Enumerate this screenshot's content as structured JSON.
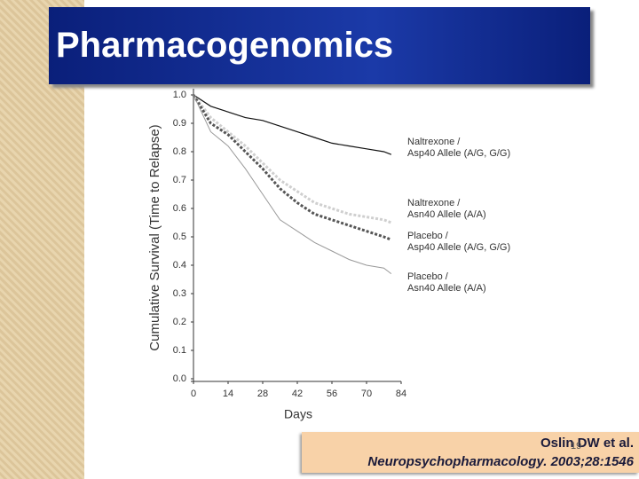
{
  "slide": {
    "title": "Pharmacogenomics",
    "citation_line1": "Oslin DW et al.",
    "citation_line2": "Neuropsychopharmacology. 2003;28:1546",
    "page_number": "19"
  },
  "chart_data": {
    "type": "line",
    "x_label": "Days",
    "y_label": "Cumulative Survival (Time to Relapse)",
    "x": [
      0,
      7,
      14,
      21,
      28,
      35,
      42,
      49,
      56,
      63,
      70,
      77,
      80
    ],
    "series": [
      {
        "name": "Naltrexone /\nAsp40 Allele (A/G, G/G)",
        "color": "#111111",
        "values": [
          1.0,
          0.96,
          0.94,
          0.92,
          0.91,
          0.89,
          0.87,
          0.85,
          0.83,
          0.82,
          0.81,
          0.8,
          0.79
        ]
      },
      {
        "name": "Naltrexone /\nAsn40 Allele (A/A)",
        "color": "#cfcfcf",
        "values": [
          1.0,
          0.92,
          0.87,
          0.82,
          0.76,
          0.7,
          0.66,
          0.62,
          0.6,
          0.58,
          0.57,
          0.56,
          0.55
        ]
      },
      {
        "name": "Placebo /\nAsp40 Allele (A/G, G/G)",
        "color": "#555555",
        "values": [
          1.0,
          0.9,
          0.86,
          0.8,
          0.74,
          0.67,
          0.62,
          0.58,
          0.56,
          0.54,
          0.52,
          0.5,
          0.49
        ]
      },
      {
        "name": "Placebo /\nAsn40 Allele (A/A)",
        "color": "#999999",
        "values": [
          1.0,
          0.87,
          0.82,
          0.74,
          0.65,
          0.56,
          0.52,
          0.48,
          0.45,
          0.42,
          0.4,
          0.39,
          0.37
        ]
      }
    ],
    "xlim": [
      0,
      84
    ],
    "xticks": [
      0,
      14,
      28,
      42,
      56,
      70,
      84
    ],
    "ylim": [
      0,
      1
    ],
    "yticks": [
      {
        "value": 0,
        "label": "0.0"
      },
      0.1,
      0.2,
      0.3,
      0.4,
      0.5,
      0.6,
      0.7,
      0.8,
      0.9,
      {
        "value": 1,
        "label": "1.0"
      }
    ]
  }
}
